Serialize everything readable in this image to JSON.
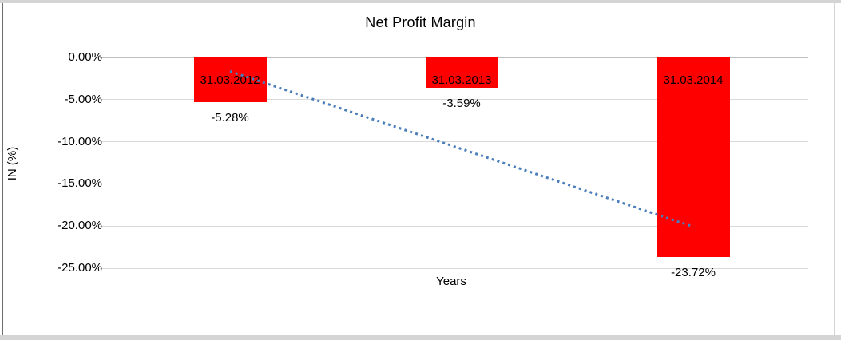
{
  "frame": {
    "light_color": "#d4d4d4",
    "dark_color": "#6e6e6e"
  },
  "chart_data": {
    "type": "bar",
    "title": "Net Profit Margin",
    "xlabel": "Years",
    "ylabel": "IN (%)",
    "categories": [
      "31.03.2012",
      "31.03.2013",
      "31.03.2014"
    ],
    "values": [
      -5.28,
      -3.59,
      -23.72
    ],
    "data_labels": [
      "-5.28%",
      "-3.59%",
      "-23.72%"
    ],
    "y_ticks": [
      {
        "label": "0.00%",
        "value": 0
      },
      {
        "label": "-5.00%",
        "value": -5
      },
      {
        "label": "-10.00%",
        "value": -10
      },
      {
        "label": "-15.00%",
        "value": -15
      },
      {
        "label": "-20.00%",
        "value": -20
      },
      {
        "label": "-25.00%",
        "value": -25
      }
    ],
    "ylim": [
      -25,
      0
    ],
    "grid": "horizontal",
    "legend": "none",
    "bar_color": "#ff0000",
    "gridline_color": "#d9d9d9",
    "text_color": "#000000",
    "trendline": {
      "type": "linear",
      "style": "dotted",
      "color": "#4a7ebb",
      "start": {
        "category": "31.03.2012",
        "value": -1.64
      },
      "end": {
        "category": "31.03.2014",
        "value": -20.08
      }
    }
  }
}
